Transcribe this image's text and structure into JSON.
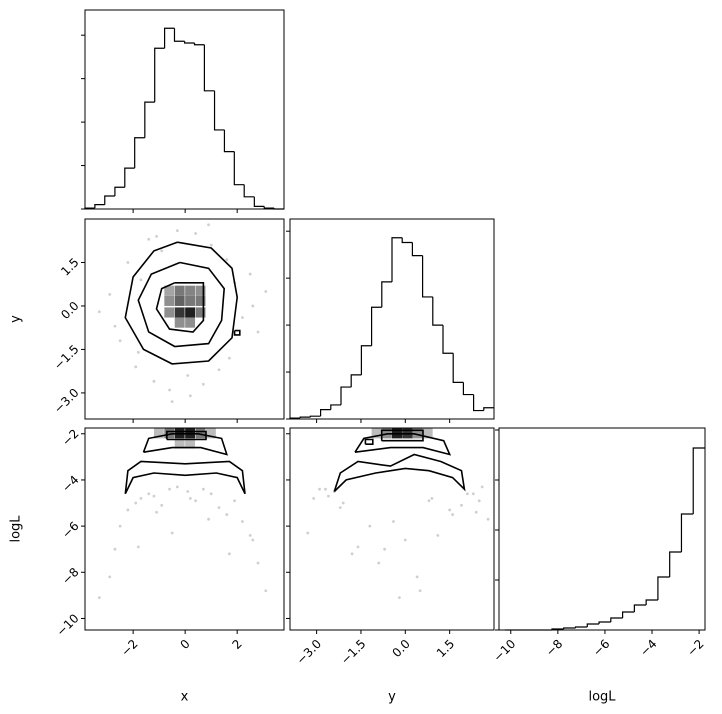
{
  "chart_data": {
    "type": "corner",
    "parameters": [
      {
        "label": "x",
        "lim": [
          -3.85,
          3.8
        ],
        "ticks": [
          {
            "value": -2,
            "label": "−2"
          },
          0,
          2
        ]
      },
      {
        "label": "y",
        "lim": [
          -3.9,
          3.0
        ],
        "ticks": [
          {
            "value": -3,
            "label": "−3.0"
          },
          {
            "value": -1.5,
            "label": "−1.5"
          },
          {
            "value": 0,
            "label": "0.0"
          },
          {
            "value": 1.5,
            "label": "1.5"
          }
        ]
      },
      {
        "label": "logL",
        "lim": [
          -10.5,
          -1.75
        ],
        "ticks": [
          {
            "value": -10,
            "label": "−10"
          },
          {
            "value": -8,
            "label": "−8"
          },
          {
            "value": -6,
            "label": "−6"
          },
          {
            "value": -4,
            "label": "−4"
          },
          {
            "value": -2,
            "label": "−2"
          }
        ]
      }
    ],
    "histograms": [
      {
        "bins": [
          -3.85,
          -3.47,
          -3.09,
          -2.7,
          -2.32,
          -1.94,
          -1.55,
          -1.17,
          -0.79,
          -0.41,
          -0.02,
          0.36,
          0.74,
          1.13,
          1.51,
          1.89,
          2.27,
          2.66,
          3.04,
          3.42,
          3.8
        ],
        "counts": [
          1,
          5,
          15,
          25,
          47,
          82,
          123,
          185,
          208,
          193,
          191,
          189,
          136,
          91,
          66,
          28,
          14,
          3,
          1,
          0
        ],
        "ylim": [
          0,
          229
        ],
        "yticks": [
          0,
          50,
          100,
          150,
          200
        ]
      },
      {
        "bins": [
          -3.9,
          -3.555,
          -3.21,
          -2.865,
          -2.52,
          -2.175,
          -1.83,
          -1.485,
          -1.14,
          -0.795,
          -0.45,
          -0.105,
          0.24,
          0.585,
          0.93,
          1.275,
          1.62,
          1.965,
          2.31,
          2.655,
          3.0
        ],
        "counts": [
          1,
          2,
          3,
          10,
          15,
          34,
          47,
          78,
          119,
          146,
          193,
          188,
          174,
          130,
          100,
          70,
          39,
          26,
          9,
          12
        ],
        "ylim": [
          0,
          213
        ],
        "yticks": [
          0,
          50,
          100,
          150,
          200
        ]
      },
      {
        "bins": [
          -10.25,
          -9.75,
          -9.25,
          -8.75,
          -8.25,
          -7.75,
          -7.25,
          -6.75,
          -6.25,
          -5.75,
          -5.25,
          -4.75,
          -4.25,
          -3.75,
          -3.25,
          -2.75,
          -2.25,
          -1.75
        ],
        "counts": [
          0,
          0,
          0,
          0,
          1,
          2,
          3,
          6,
          8,
          12,
          18,
          25,
          30,
          53,
          78,
          116,
          182
        ],
        "ylim": [
          0,
          202
        ],
        "yticks": [
          0,
          50,
          100,
          150,
          200
        ]
      }
    ],
    "samples": [
      [
        -2.9,
        -2.5,
        -2.2,
        -1.9,
        -1.7,
        -1.4,
        -1.2,
        -0.9,
        -0.6,
        -0.3,
        0.1,
        0.4,
        0.7,
        1.0,
        1.3,
        1.6,
        1.9,
        2.2,
        2.5,
        2.8,
        -3.3,
        3.1,
        -0.5,
        0.9,
        -1.8,
        1.7,
        -2.7,
        2.6,
        0.2,
        -1.1
      ],
      [
        0.4,
        -1.2,
        1.5,
        -2.1,
        0.9,
        2.3,
        -2.6,
        1.9,
        -2.9,
        2.6,
        -2.4,
        2.5,
        -2.7,
        2.1,
        -2.2,
        1.6,
        0.8,
        -0.4,
        1.1,
        -0.9,
        -0.2,
        0.5,
        -3.3,
        2.8,
        -1.6,
        -1.8,
        -0.7,
        0.0,
        -3.1,
        2.4
      ],
      [
        -8.2,
        -6.0,
        -5.3,
        -5.0,
        -4.8,
        -4.6,
        -4.7,
        -5.1,
        -4.4,
        -4.3,
        -4.5,
        -4.9,
        -4.4,
        -4.6,
        -5.2,
        -5.5,
        -4.9,
        -5.8,
        -6.4,
        -7.6,
        -9.1,
        -8.8,
        -6.3,
        -5.7,
        -6.9,
        -7.2,
        -7.0,
        -6.6,
        -4.8,
        -5.4
      ]
    ],
    "panels": [
      {
        "cell": [
          0.38,
          0.35
        ],
        "cells": [
          [
            -0.4,
            -0.4,
            0.9
          ],
          [
            0,
            -0.4,
            1.0
          ],
          [
            -0.4,
            0,
            0.7
          ],
          [
            0,
            0,
            0.6
          ],
          [
            0.4,
            0,
            0.6
          ],
          [
            -0.8,
            0,
            0.5
          ],
          [
            -0.4,
            0.35,
            0.6
          ],
          [
            0.4,
            0.35,
            0.5
          ],
          [
            -0.8,
            -0.4,
            0.5
          ],
          [
            0.4,
            -0.4,
            0.6
          ],
          [
            -0.4,
            -0.75,
            0.5
          ],
          [
            0,
            -0.75,
            0.5
          ],
          [
            -0.8,
            0.35,
            0.4
          ],
          [
            0,
            0.35,
            0.55
          ]
        ],
        "contours": [
          {
            "x": [
              -0.3,
              1.0,
              1.8,
              2.0,
              1.8,
              0.9,
              -0.5,
              -1.6,
              -2.3,
              -2.0,
              -1.2,
              -0.3
            ],
            "y": [
              2.2,
              2.0,
              1.3,
              0.3,
              -1.1,
              -1.9,
              -2.0,
              -1.5,
              -0.4,
              1.0,
              1.9,
              2.2
            ]
          },
          {
            "x": [
              -0.2,
              0.9,
              1.5,
              1.4,
              0.9,
              -0.4,
              -1.4,
              -1.8,
              -1.3,
              -0.2
            ],
            "y": [
              1.5,
              1.3,
              0.6,
              -0.5,
              -1.3,
              -1.4,
              -0.9,
              0.2,
              1.1,
              1.5
            ]
          },
          {
            "x": [
              -0.4,
              0.7,
              0.7,
              0.3,
              -0.6,
              -1.1,
              -0.9,
              -0.4
            ],
            "y": [
              0.8,
              0.8,
              -0.5,
              -0.9,
              -0.8,
              -0.1,
              0.6,
              0.8
            ]
          },
          {
            "x": [
              1.9,
              2.1,
              2.1,
              1.9,
              1.9
            ],
            "y": [
              -0.85,
              -0.85,
              -1.0,
              -1.0,
              -0.85
            ]
          }
        ]
      },
      {
        "cell": [
          0.38,
          0.44
        ],
        "cells": [
          [
            -0.4,
            -2.2,
            1.0
          ],
          [
            0,
            -2.2,
            1.0
          ],
          [
            -0.8,
            -2.2,
            0.6
          ],
          [
            0.4,
            -2.2,
            0.6
          ],
          [
            -1.2,
            -2.2,
            0.3
          ],
          [
            0.8,
            -2.2,
            0.3
          ],
          [
            -0.4,
            -2.64,
            0.3
          ],
          [
            0,
            -2.64,
            0.3
          ]
        ],
        "contours": [
          {
            "x": [
              -2.3,
              -2.2,
              -1.7,
              0,
              1.7,
              2.2,
              2.3,
              2.0,
              1.2,
              0,
              -1.2,
              -2.0,
              -2.3
            ],
            "y": [
              -4.6,
              -3.6,
              -3.2,
              -3.3,
              -3.2,
              -3.6,
              -4.6,
              -3.9,
              -3.7,
              -3.8,
              -3.7,
              -3.9,
              -4.6
            ]
          },
          {
            "x": [
              -1.6,
              -0.5,
              0.6,
              1.6,
              1.4,
              0.5,
              -0.5,
              -1.4,
              -1.6
            ],
            "y": [
              -2.8,
              -2.6,
              -2.6,
              -2.9,
              -2.2,
              -2.0,
              -2.0,
              -2.2,
              -2.8
            ]
          },
          {
            "x": [
              -0.7,
              0.8,
              0.8,
              -0.7,
              -0.7
            ],
            "y": [
              -2.25,
              -2.25,
              -1.9,
              -1.9,
              -2.25
            ]
          }
        ]
      },
      {
        "cell": [
          0.345,
          0.44
        ],
        "cells": [
          [
            -0.45,
            -2.2,
            1.0
          ],
          [
            -0.1,
            -2.2,
            0.9
          ],
          [
            -0.8,
            -2.2,
            0.5
          ],
          [
            0.24,
            -2.2,
            0.5
          ],
          [
            -1.14,
            -2.2,
            0.3
          ],
          [
            0.58,
            -2.2,
            0.3
          ]
        ],
        "contours": [
          {
            "x": [
              -2.4,
              -2.2,
              -1.6,
              -0.5,
              0.3,
              1.2,
              1.9,
              2.0,
              1.6,
              0.8,
              0,
              -1.0,
              -2.0,
              -2.4
            ],
            "y": [
              -4.5,
              -3.7,
              -3.2,
              -3.4,
              -2.9,
              -3.2,
              -3.6,
              -4.4,
              -3.9,
              -3.6,
              -3.5,
              -3.7,
              -4.0,
              -4.5
            ]
          },
          {
            "x": [
              -1.7,
              -0.5,
              0.6,
              1.5,
              1.3,
              0.3,
              -0.6,
              -1.4,
              -1.7
            ],
            "y": [
              -2.8,
              -2.6,
              -2.6,
              -2.9,
              -2.3,
              -2.0,
              -2.0,
              -2.2,
              -2.8
            ]
          },
          {
            "x": [
              -0.8,
              0.6,
              0.6,
              -0.8,
              -0.8
            ],
            "y": [
              -2.3,
              -2.3,
              -1.85,
              -1.85,
              -2.3
            ]
          },
          {
            "x": [
              -1.35,
              -1.1,
              -1.1,
              -1.35,
              -1.35
            ],
            "y": [
              -2.45,
              -2.45,
              -2.25,
              -2.25,
              -2.45
            ]
          }
        ]
      }
    ]
  }
}
